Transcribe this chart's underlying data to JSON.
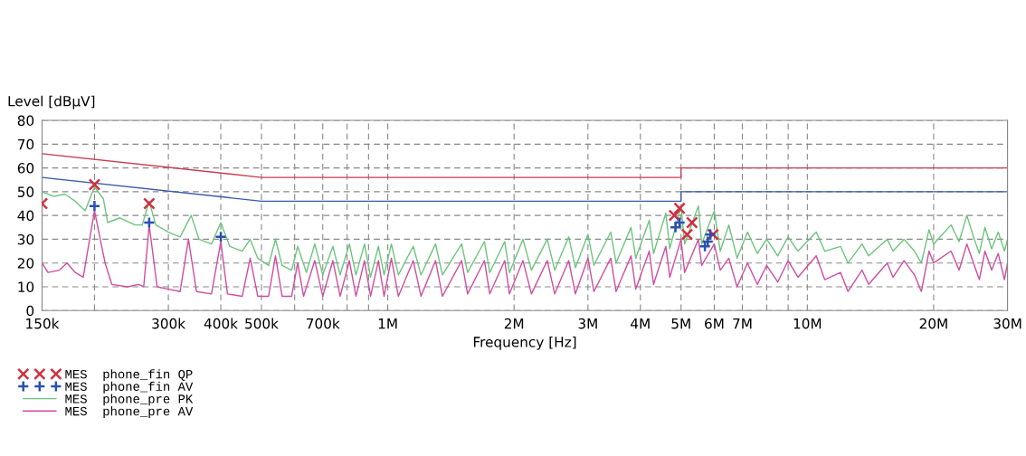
{
  "chart_data": {
    "type": "line",
    "xlabel": "Frequency [Hz]",
    "ylabel": "Level [dBµV]",
    "log": "x",
    "grid": true,
    "legend": "bottom left",
    "xlim": [
      150000,
      30000000
    ],
    "ylim": [
      0,
      80
    ],
    "xticks": [
      {
        "value": 150000,
        "label": "150k"
      },
      {
        "value": 200000,
        "label": null
      },
      {
        "value": 300000,
        "label": "300k"
      },
      {
        "value": 400000,
        "label": "400k"
      },
      {
        "value": 500000,
        "label": "500k"
      },
      {
        "value": 600000,
        "label": null
      },
      {
        "value": 700000,
        "label": "700k"
      },
      {
        "value": 800000,
        "label": null
      },
      {
        "value": 900000,
        "label": null
      },
      {
        "value": 1000000,
        "label": "1M"
      },
      {
        "value": 2000000,
        "label": "2M"
      },
      {
        "value": 3000000,
        "label": "3M"
      },
      {
        "value": 4000000,
        "label": "4M"
      },
      {
        "value": 5000000,
        "label": "5M"
      },
      {
        "value": 6000000,
        "label": "6M"
      },
      {
        "value": 7000000,
        "label": "7M"
      },
      {
        "value": 8000000,
        "label": null
      },
      {
        "value": 9000000,
        "label": null
      },
      {
        "value": 10000000,
        "label": "10M"
      },
      {
        "value": 20000000,
        "label": "20M"
      },
      {
        "value": 30000000,
        "label": "30M"
      }
    ],
    "yticks": [
      0,
      10,
      20,
      30,
      40,
      50,
      60,
      70,
      80
    ],
    "series": [
      {
        "type": "scatter",
        "name": "MES  phone_fin QP",
        "marker": "cross",
        "color": "#d03040",
        "x": [
          150000,
          200000,
          270000,
          4820000,
          4960000,
          5170000,
          5310000,
          5960000
        ],
        "values": [
          45,
          53,
          45,
          40,
          43,
          32,
          37,
          32
        ]
      },
      {
        "type": "scatter",
        "name": "MES  phone_fin AV",
        "marker": "plus",
        "color": "#2a50b0",
        "x": [
          200000,
          270000,
          400000,
          4850000,
          4960000,
          5700000,
          5790000,
          5870000
        ],
        "values": [
          44,
          37,
          31,
          35,
          37,
          27,
          29,
          32
        ]
      },
      {
        "name": "MES  phone_pre PK",
        "color": "#6cc47c",
        "x": [
          150000,
          160000,
          170000,
          180000,
          190000,
          200000,
          210000,
          215000,
          230000,
          250000,
          260000,
          270000,
          280000,
          300000,
          320000,
          340000,
          355000,
          380000,
          400000,
          420000,
          450000,
          470000,
          490000,
          520000,
          540000,
          560000,
          590000,
          610000,
          640000,
          670000,
          700000,
          740000,
          770000,
          810000,
          840000,
          880000,
          910000,
          950000,
          980000,
          1020000,
          1060000,
          1150000,
          1200000,
          1300000,
          1350000,
          1500000,
          1550000,
          1700000,
          1750000,
          1900000,
          1950000,
          2100000,
          2200000,
          2400000,
          2500000,
          2700000,
          2800000,
          3000000,
          3100000,
          3400000,
          3500000,
          3800000,
          3900000,
          4200000,
          4300000,
          4600000,
          4700000,
          5000000,
          5100000,
          5500000,
          5600000,
          6000000,
          6200000,
          6500000,
          6800000,
          7200000,
          7600000,
          8000000,
          8500000,
          9000000,
          9500000,
          10500000,
          11000000,
          12000000,
          12500000,
          13500000,
          14000000,
          15500000,
          16000000,
          17000000,
          18000000,
          18700000,
          19500000,
          20000000,
          22000000,
          23000000,
          24000000,
          25000000,
          25700000,
          26500000,
          27500000,
          28500000,
          29500000,
          30000000
        ],
        "values": [
          50,
          48,
          49,
          46,
          42,
          52,
          47,
          37,
          39,
          36,
          36,
          46,
          36,
          33,
          31,
          40,
          30,
          28,
          37,
          27,
          25,
          30,
          22,
          19,
          30,
          19,
          17,
          27,
          16,
          28,
          15,
          27,
          15,
          28,
          15,
          28,
          14,
          27,
          15,
          28,
          15,
          27,
          15,
          28,
          15,
          28,
          16,
          29,
          16,
          29,
          16,
          30,
          17,
          30,
          17,
          31,
          18,
          32,
          19,
          33,
          20,
          35,
          22,
          38,
          24,
          41,
          26,
          44,
          28,
          44,
          28,
          42,
          25,
          36,
          22,
          33,
          24,
          30,
          23,
          31,
          25,
          33,
          25,
          27,
          20,
          28,
          23,
          30,
          25,
          30,
          25,
          20,
          34,
          28,
          36,
          29,
          40,
          30,
          24,
          35,
          26,
          33,
          25,
          30
        ]
      },
      {
        "name": "MES  phone_pre AV",
        "color": "#d04ca0",
        "x": [
          150000,
          155000,
          165000,
          172000,
          180000,
          188000,
          200000,
          212000,
          220000,
          240000,
          255000,
          262000,
          270000,
          282000,
          300000,
          320000,
          335000,
          350000,
          380000,
          400000,
          415000,
          450000,
          470000,
          490000,
          520000,
          540000,
          560000,
          590000,
          610000,
          630000,
          670000,
          700000,
          740000,
          770000,
          810000,
          840000,
          880000,
          910000,
          950000,
          980000,
          1020000,
          1060000,
          1150000,
          1200000,
          1300000,
          1350000,
          1500000,
          1550000,
          1700000,
          1750000,
          1900000,
          1950000,
          2100000,
          2200000,
          2400000,
          2500000,
          2700000,
          2800000,
          3000000,
          3100000,
          3400000,
          3500000,
          3800000,
          3900000,
          4200000,
          4300000,
          4600000,
          4700000,
          5000000,
          5100000,
          5500000,
          5600000,
          6000000,
          6200000,
          6500000,
          6800000,
          7200000,
          7600000,
          8000000,
          8500000,
          9000000,
          9500000,
          10500000,
          11000000,
          12000000,
          12500000,
          13500000,
          14000000,
          15500000,
          16000000,
          17000000,
          18000000,
          18700000,
          19500000,
          20000000,
          22000000,
          23000000,
          24000000,
          25000000,
          25700000,
          26500000,
          27500000,
          28500000,
          29500000,
          30000000
        ],
        "values": [
          20,
          16,
          17,
          20,
          16,
          14,
          42,
          20,
          11,
          10,
          11,
          10,
          36,
          10,
          9,
          8,
          30,
          8,
          7,
          29,
          7,
          6,
          22,
          6,
          6,
          23,
          6,
          6,
          20,
          6,
          21,
          6,
          21,
          6,
          21,
          6,
          21,
          6,
          21,
          6,
          22,
          6,
          21,
          6,
          21,
          6,
          21,
          7,
          21,
          7,
          21,
          7,
          21,
          7,
          21,
          7,
          21,
          7,
          22,
          8,
          22,
          8,
          23,
          9,
          25,
          11,
          27,
          14,
          30,
          16,
          30,
          19,
          28,
          17,
          22,
          10,
          20,
          11,
          19,
          12,
          21,
          14,
          23,
          13,
          16,
          8,
          17,
          11,
          20,
          14,
          21,
          15,
          8,
          25,
          20,
          25,
          17,
          28,
          19,
          13,
          25,
          17,
          24,
          13,
          20
        ]
      },
      {
        "color": "#c83c50",
        "x": [
          150000,
          500000,
          5000000,
          5000000,
          30000000
        ],
        "values": [
          66,
          56,
          56,
          60,
          60
        ]
      },
      {
        "color": "#3a5aa8",
        "x": [
          150000,
          500000,
          5000000,
          5000000,
          30000000
        ],
        "values": [
          56,
          46,
          46,
          50,
          50
        ]
      }
    ]
  }
}
